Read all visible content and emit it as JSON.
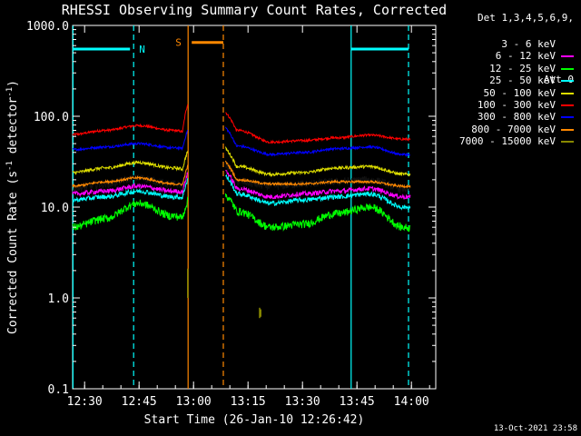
{
  "chart_data": {
    "type": "line",
    "title": "RHESSI Observing Summary Count Rates, Corrected",
    "xlabel": "Start Time (26-Jan-10 12:26:42)",
    "ylabel_main": "Corrected Count Rate (s",
    "ylabel_sup": "-1",
    "ylabel_mid": " detector",
    "ylabel_end": ")",
    "x_ticks": [
      {
        "label": "12:30",
        "t": 3.3
      },
      {
        "label": "12:45",
        "t": 18.3
      },
      {
        "label": "13:00",
        "t": 33.3
      },
      {
        "label": "13:15",
        "t": 48.3
      },
      {
        "label": "13:30",
        "t": 63.3
      },
      {
        "label": "13:45",
        "t": 78.3
      },
      {
        "label": "14:00",
        "t": 93.3
      }
    ],
    "xlim_minutes": [
      0,
      100
    ],
    "ylim": [
      0.1,
      1000
    ],
    "y_scale": "log",
    "y_ticks": [
      {
        "label": "0.1",
        "v": 0.1
      },
      {
        "label": "1.0",
        "v": 1
      },
      {
        "label": "10.0",
        "v": 10
      },
      {
        "label": "100.0",
        "v": 100
      },
      {
        "label": "1000.0",
        "v": 1000
      }
    ],
    "detectors": "Det 1,3,4,5,6,9,",
    "attenuator": "Att 0",
    "legend": [
      {
        "label": "3 - 6 keV",
        "color": "#000000"
      },
      {
        "label": "6 - 12 keV",
        "color": "#ff00ff"
      },
      {
        "label": "12 - 25 keV",
        "color": "#00ff00"
      },
      {
        "label": "25 - 50 keV",
        "color": "#00ffff"
      },
      {
        "label": "50 - 100 keV",
        "color": "#dddd00"
      },
      {
        "label": "100 - 300 keV",
        "color": "#ff0000"
      },
      {
        "label": "300 - 800 keV",
        "color": "#0000ff"
      },
      {
        "label": "800 - 7000 keV",
        "color": "#ff8800"
      },
      {
        "label": "7000 - 15000 keV",
        "color": "#888800"
      }
    ],
    "gap_minutes": [
      31.8,
      42.1
    ],
    "series": [
      {
        "legend_index": 5,
        "base": [
          63,
          70,
          79,
          70,
          60,
          70,
          52,
          54,
          58,
          62,
          56,
          52
        ],
        "noise": 0.03
      },
      {
        "legend_index": 6,
        "base": [
          43,
          46,
          50,
          45,
          42,
          47,
          38,
          40,
          44,
          46,
          38,
          33
        ],
        "noise": 0.03
      },
      {
        "legend_index": 4,
        "base": [
          24,
          27,
          31,
          27,
          24,
          28,
          23,
          24,
          27,
          28,
          23,
          21
        ],
        "noise": 0.04
      },
      {
        "legend_index": 0,
        "base": [
          16,
          18,
          21,
          18,
          16,
          19,
          17,
          18,
          19,
          20,
          16,
          14
        ],
        "noise": 0.1
      },
      {
        "legend_index": 7,
        "base": [
          17,
          19,
          21,
          18,
          17,
          20,
          18,
          18,
          19,
          19,
          17,
          16
        ],
        "noise": 0.03
      },
      {
        "legend_index": 1,
        "base": [
          14,
          15,
          17,
          15,
          14,
          16,
          13,
          14,
          15,
          16,
          13,
          12
        ],
        "noise": 0.06
      },
      {
        "legend_index": 3,
        "base": [
          12,
          13,
          15,
          13,
          12,
          14,
          11,
          12,
          13,
          14,
          10,
          9.5
        ],
        "noise": 0.06
      },
      {
        "legend_index": 2,
        "base": [
          6,
          7.5,
          11,
          8,
          6.5,
          9,
          6,
          6.5,
          8.5,
          10,
          6,
          5
        ],
        "noise": 0.1
      }
    ],
    "brown_spikes": [
      {
        "t": 31.7,
        "y0": 1.0,
        "y1": 2.1
      },
      {
        "t": 51.5,
        "y0": 0.6,
        "y1": 0.78
      },
      {
        "t": 51.8,
        "y0": 0.62,
        "y1": 0.75
      }
    ],
    "flags": {
      "N": {
        "label": "N",
        "color": "#00ffff",
        "start_min": 0,
        "end_min": 16.8,
        "start2_min": 76.7,
        "end2_min": 92.5,
        "level": 550
      },
      "S": {
        "label": "S",
        "color": "#ff8800",
        "start_min": 31.8,
        "end_min": 41.5,
        "level": 650
      }
    },
    "vlines": [
      {
        "t": 0.1,
        "color": "#00ffff",
        "style": "solid"
      },
      {
        "t": 16.8,
        "color": "#00ffff",
        "style": "dashed"
      },
      {
        "t": 76.7,
        "color": "#00ffff",
        "style": "solid"
      },
      {
        "t": 92.5,
        "color": "#00ffff",
        "style": "dashed"
      },
      {
        "t": 31.8,
        "color": "#ff8800",
        "style": "solid"
      },
      {
        "t": 41.5,
        "color": "#ff8800",
        "style": "dashed"
      }
    ]
  },
  "timestamp": "13-Oct-2021 23:58"
}
